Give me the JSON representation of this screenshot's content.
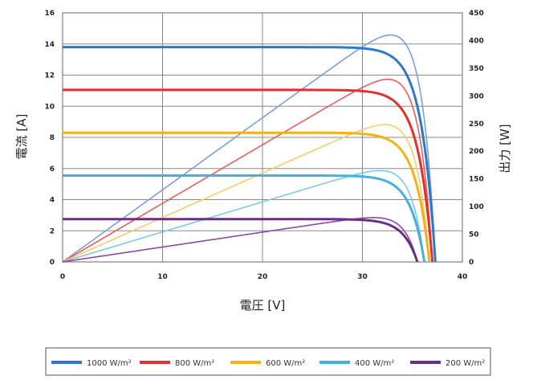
{
  "chart_data": {
    "type": "line",
    "xlabel": "電圧 [V]",
    "ylabel_left": "電流 [A]",
    "ylabel_right": "出力 [W]",
    "xlim": [
      0,
      40
    ],
    "ylim_left": [
      0,
      16
    ],
    "ylim_right": [
      0,
      450
    ],
    "x_ticks": [
      "0",
      "10",
      "20",
      "30",
      "40"
    ],
    "y_left_ticks": [
      "0",
      "2",
      "4",
      "6",
      "8",
      "10",
      "12",
      "14",
      "16"
    ],
    "y_right_ticks": [
      "0",
      "50",
      "100",
      "150",
      "200",
      "250",
      "300",
      "350",
      "400",
      "450"
    ],
    "grid": true,
    "legend_position": "bottom",
    "series": [
      {
        "name": "1000 W/m²",
        "color": "#2e78c8",
        "power_color": "#7aa0d8",
        "isc": 13.8,
        "voc": 37.3,
        "vmp": 31.5,
        "pmax": 410
      },
      {
        "name": "800 W/m²",
        "color": "#e03030",
        "power_color": "#ec5b5b",
        "isc": 11.05,
        "voc": 37.0,
        "vmp": 31.5,
        "pmax": 330
      },
      {
        "name": "600 W/m²",
        "color": "#f5b114",
        "power_color": "#f8cc66",
        "isc": 8.3,
        "voc": 36.7,
        "vmp": 31.5,
        "pmax": 248
      },
      {
        "name": "400 W/m²",
        "color": "#45b0df",
        "power_color": "#7cc7e8",
        "isc": 5.55,
        "voc": 36.2,
        "vmp": 31.0,
        "pmax": 165
      },
      {
        "name": "200 W/m²",
        "color": "#6d2c8a",
        "power_color": "#8a4aa4",
        "isc": 2.75,
        "voc": 35.5,
        "vmp": 31.0,
        "pmax": 80
      }
    ]
  }
}
